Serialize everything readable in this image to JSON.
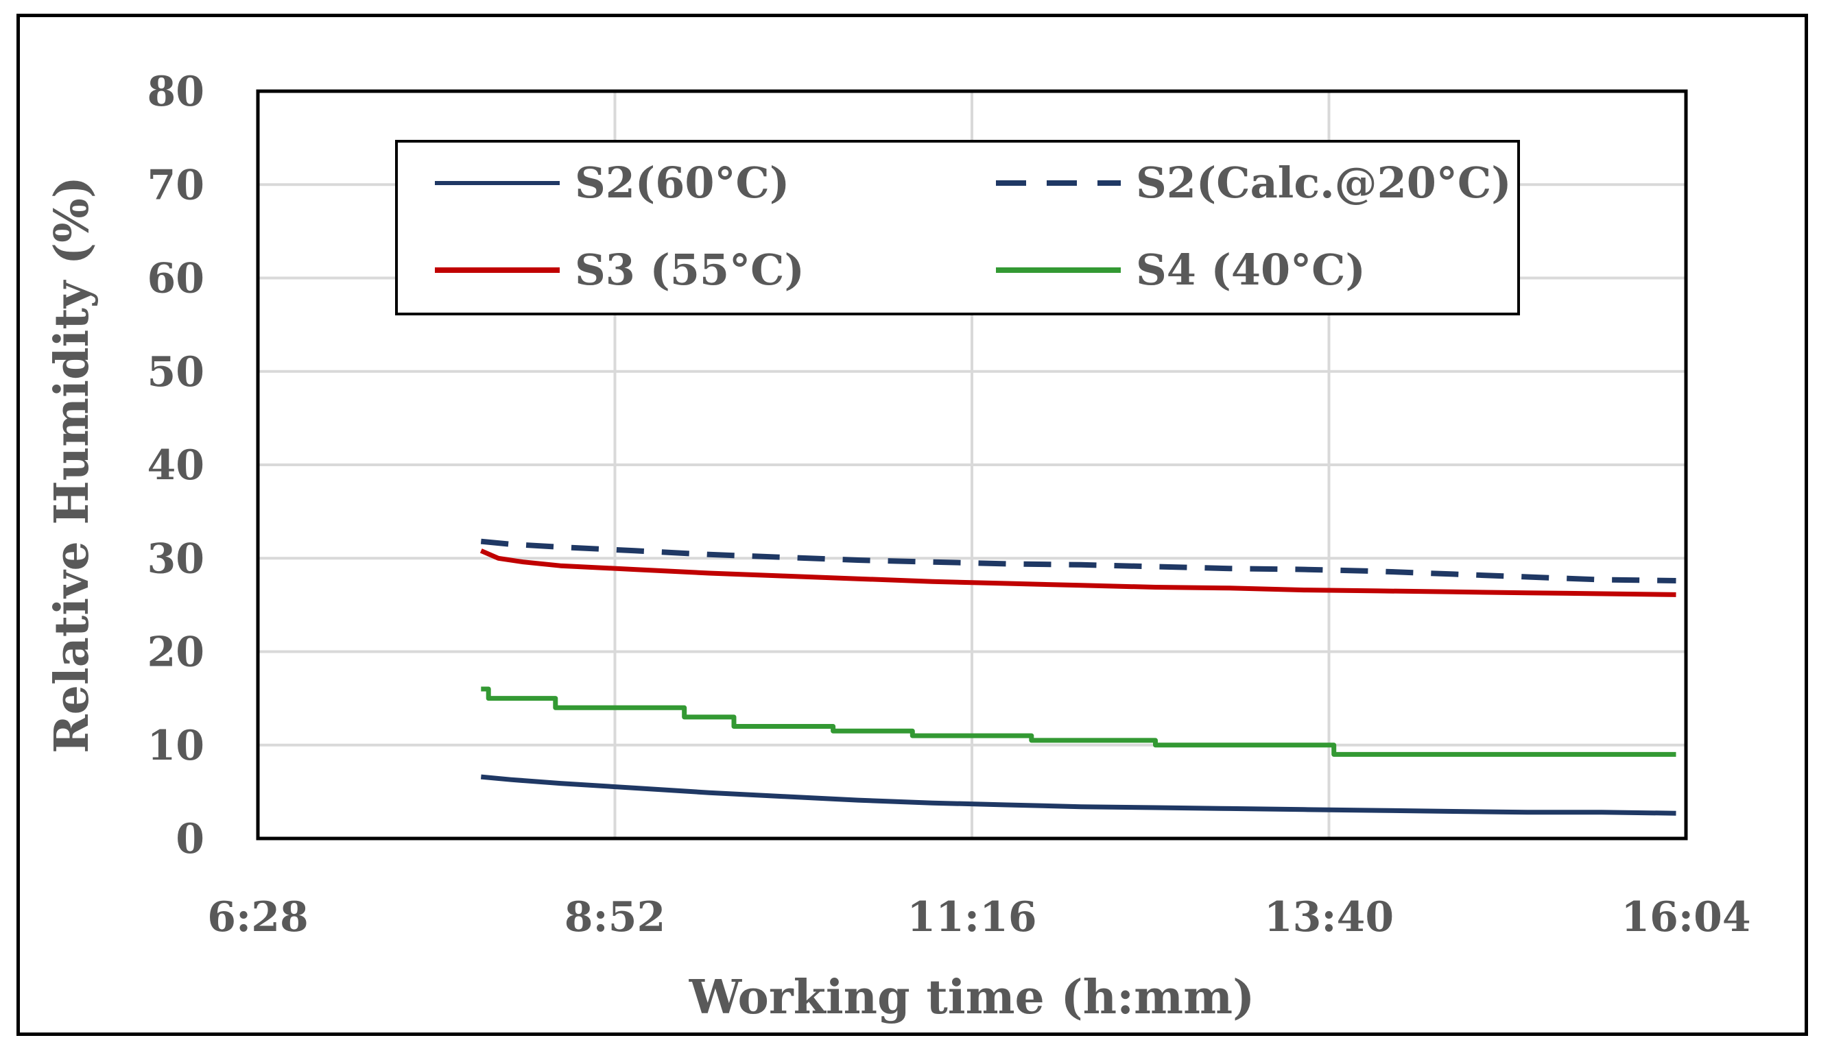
{
  "chart_data": {
    "type": "line",
    "title": "",
    "xlabel": "Working time (h:mm)",
    "ylabel": "Relative Humidity (%)",
    "ylim": [
      0,
      80
    ],
    "yticks": [
      "0",
      "10",
      "20",
      "30",
      "40",
      "50",
      "60",
      "70",
      "80"
    ],
    "x_unit": "minutes since 0:00",
    "xlim": [
      388,
      964
    ],
    "xticks": [
      "6:28",
      "8:52",
      "11:16",
      "13:40",
      "16:04"
    ],
    "grid": true,
    "legend_position": "top-center",
    "series": [
      {
        "name": "S2(60°C)",
        "color": "#1f3864",
        "style": "solid",
        "x": [
          478,
          490,
          510,
          540,
          570,
          600,
          630,
          660,
          690,
          720,
          750,
          780,
          810,
          840,
          870,
          900,
          930,
          960
        ],
        "values": [
          6.6,
          6.3,
          5.9,
          5.4,
          4.9,
          4.5,
          4.1,
          3.8,
          3.6,
          3.4,
          3.3,
          3.2,
          3.1,
          3.0,
          2.9,
          2.8,
          2.8,
          2.7
        ]
      },
      {
        "name": "S2(Calc.@20°C)",
        "color": "#1f3864",
        "style": "dashed",
        "x": [
          478,
          490,
          510,
          540,
          570,
          600,
          630,
          660,
          690,
          720,
          750,
          780,
          810,
          840,
          870,
          900,
          930,
          960
        ],
        "values": [
          31.8,
          31.5,
          31.2,
          30.8,
          30.4,
          30.1,
          29.8,
          29.6,
          29.4,
          29.3,
          29.1,
          28.9,
          28.8,
          28.6,
          28.3,
          28.0,
          27.7,
          27.6
        ]
      },
      {
        "name": "S3 (55°C)",
        "color": "#c00000",
        "style": "solid",
        "x": [
          478,
          485,
          495,
          510,
          540,
          570,
          600,
          630,
          660,
          690,
          720,
          750,
          780,
          810,
          840,
          870,
          900,
          930,
          960
        ],
        "values": [
          30.8,
          30.0,
          29.6,
          29.2,
          28.8,
          28.4,
          28.1,
          27.8,
          27.5,
          27.3,
          27.1,
          26.9,
          26.8,
          26.6,
          26.5,
          26.4,
          26.3,
          26.2,
          26.1
        ]
      },
      {
        "name": "S4 (40°C)",
        "color": "#339933",
        "style": "solid",
        "x": [
          478,
          481,
          481,
          508,
          508,
          560,
          560,
          580,
          580,
          620,
          620,
          652,
          652,
          700,
          700,
          750,
          750,
          822,
          822,
          960
        ],
        "values": [
          16,
          16,
          15,
          15,
          14,
          14,
          13,
          13,
          12,
          12,
          11.5,
          11.5,
          11,
          11,
          10.5,
          10.5,
          10,
          10,
          9,
          9
        ]
      }
    ]
  }
}
